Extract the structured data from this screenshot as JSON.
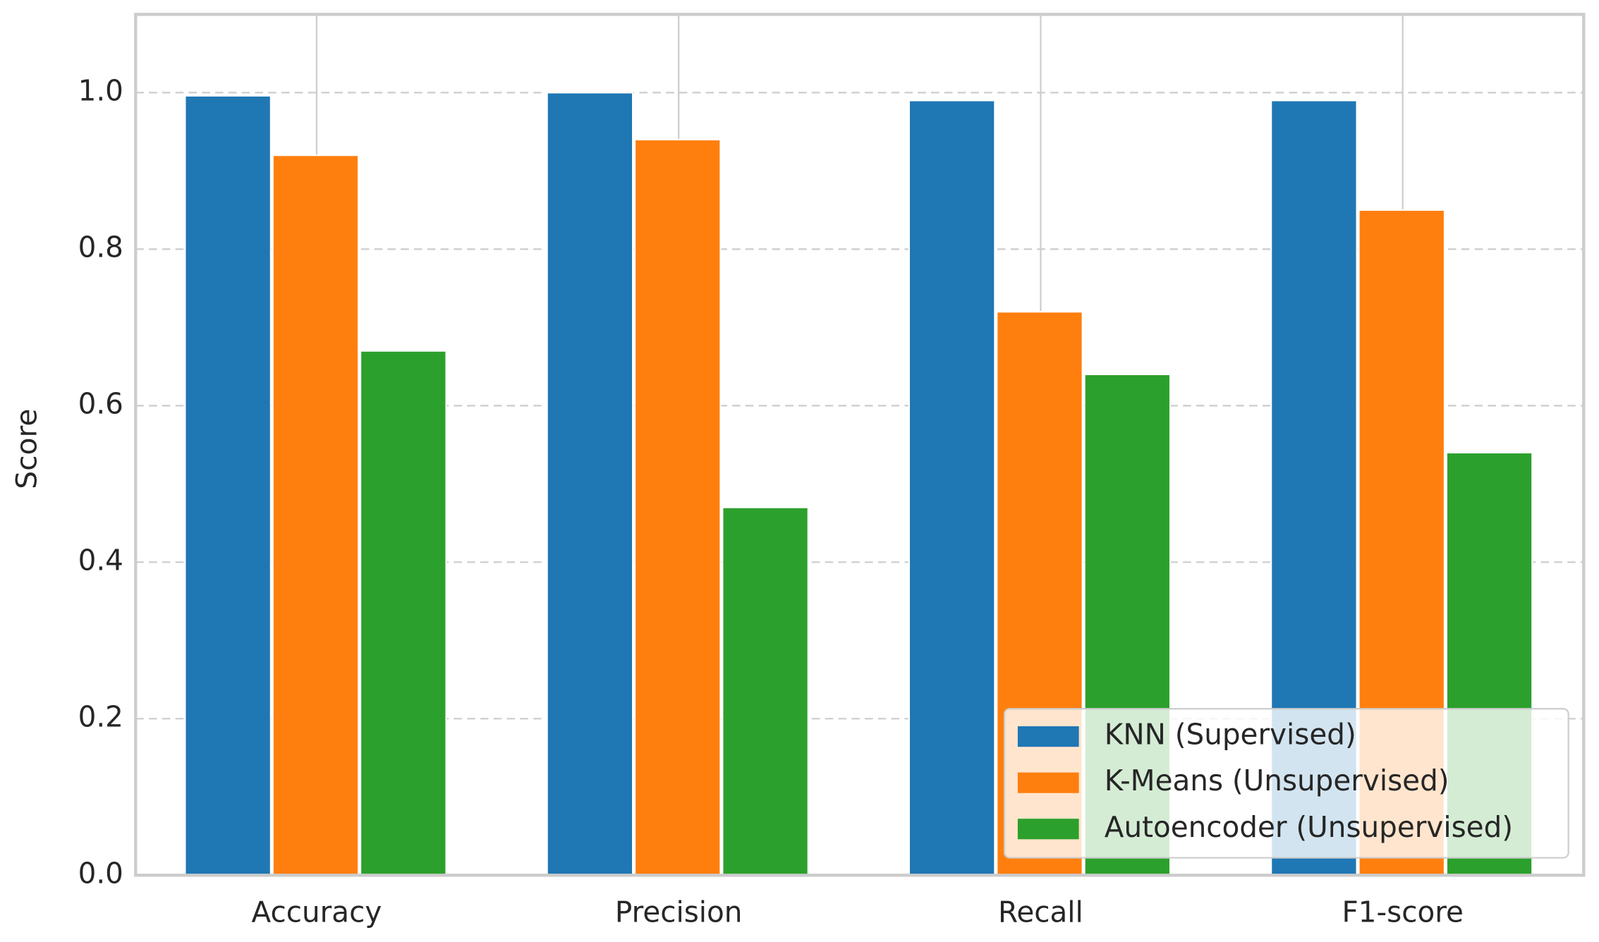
{
  "chart_data": {
    "type": "bar",
    "categories": [
      "Accuracy",
      "Precision",
      "Recall",
      "F1-score"
    ],
    "series": [
      {
        "name": "KNN (Supervised)",
        "color": "#1f77b4",
        "values": [
          0.996,
          1.0,
          0.99,
          0.99
        ]
      },
      {
        "name": "K-Means (Unsupervised)",
        "color": "#ff7f0e",
        "values": [
          0.92,
          0.94,
          0.72,
          0.85
        ]
      },
      {
        "name": "Autoencoder (Unsupervised)",
        "color": "#2ca02c",
        "values": [
          0.67,
          0.47,
          0.64,
          0.54
        ]
      }
    ],
    "y_label": "Score",
    "ylim": [
      0,
      1.1
    ],
    "yticks": [
      {
        "value": 0,
        "label": "0.0"
      },
      0.2,
      0.4,
      0.6,
      0.8,
      {
        "value": 1.0,
        "label": "1.0"
      }
    ],
    "grid": true,
    "legend": "lower right"
  }
}
